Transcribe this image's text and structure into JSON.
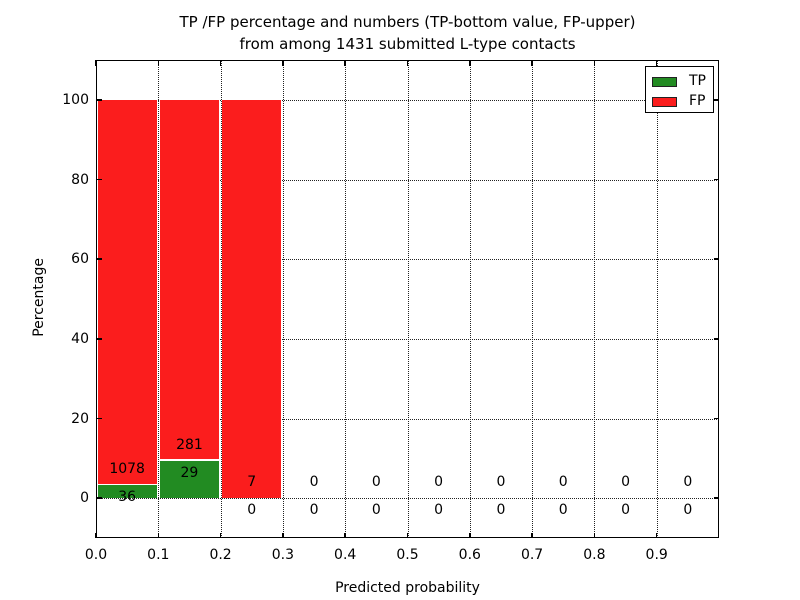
{
  "title": {
    "line1": "TP /FP percentage and numbers (TP-bottom value, FP-upper)",
    "line2": "from among 1431 submitted L-type contacts"
  },
  "chart_data": {
    "type": "bar",
    "variant": "stacked-histogram",
    "title": "TP /FP percentage and numbers (TP-bottom value, FP-upper) from among 1431 submitted L-type contacts",
    "xlabel": "Predicted probability",
    "ylabel": "Percentage",
    "xlim": [
      0.0,
      1.0
    ],
    "ylim": [
      -10,
      110
    ],
    "grid": "dotted",
    "legend_position": "upper right",
    "total_submitted": 1431,
    "bin_edges": [
      0.0,
      0.1,
      0.2,
      0.3,
      0.4,
      0.5,
      0.6,
      0.7,
      0.8,
      0.9,
      1.0
    ],
    "xticks": [
      "0.0",
      "0.1",
      "0.2",
      "0.3",
      "0.4",
      "0.5",
      "0.6",
      "0.7",
      "0.8",
      "0.9"
    ],
    "yticks": [
      "0",
      "20",
      "40",
      "60",
      "80",
      "100"
    ],
    "legend": {
      "entries": [
        {
          "label": "TP",
          "color": "#228b22"
        },
        {
          "label": "FP",
          "color": "#fb1d1d"
        }
      ]
    },
    "series": [
      {
        "name": "TP",
        "color": "#228b22",
        "counts": [
          36,
          29,
          0,
          0,
          0,
          0,
          0,
          0,
          0,
          0
        ],
        "percent": [
          3.23,
          9.35,
          0,
          0,
          0,
          0,
          0,
          0,
          0,
          0
        ]
      },
      {
        "name": "FP",
        "color": "#fb1d1d",
        "counts": [
          1078,
          281,
          7,
          0,
          0,
          0,
          0,
          0,
          0,
          0
        ],
        "percent": [
          96.77,
          90.65,
          100,
          0,
          0,
          0,
          0,
          0,
          0,
          0
        ]
      }
    ]
  }
}
